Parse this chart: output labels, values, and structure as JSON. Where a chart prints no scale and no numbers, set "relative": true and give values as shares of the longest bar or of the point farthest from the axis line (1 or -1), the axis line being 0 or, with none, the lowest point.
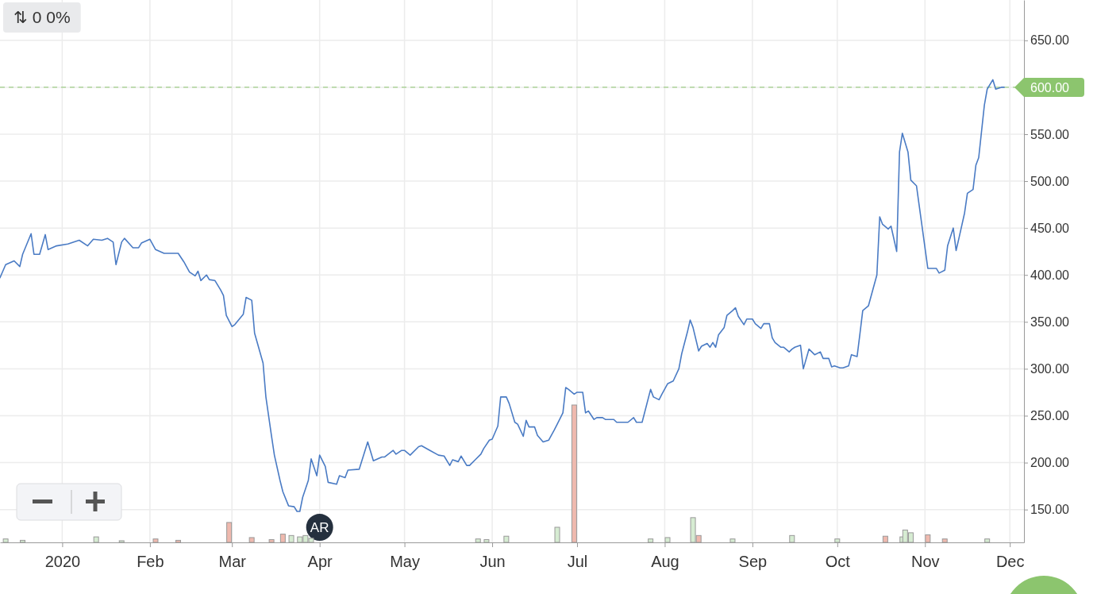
{
  "chart_data": [
    {
      "type": "line",
      "xlim": [
        "2019-12-10",
        "2020-12-06"
      ],
      "ylim": [
        115,
        693
      ],
      "xticks": [
        {
          "value": "2020-01-01",
          "label": "2020"
        },
        {
          "value": "2020-02-01",
          "label": "Feb"
        },
        {
          "value": "2020-03-01",
          "label": "Mar"
        },
        {
          "value": "2020-04-01",
          "label": "Apr"
        },
        {
          "value": "2020-05-01",
          "label": "May"
        },
        {
          "value": "2020-06-01",
          "label": "Jun"
        },
        {
          "value": "2020-07-01",
          "label": "Jul"
        },
        {
          "value": "2020-08-01",
          "label": "Aug"
        },
        {
          "value": "2020-09-01",
          "label": "Sep"
        },
        {
          "value": "2020-10-01",
          "label": "Oct"
        },
        {
          "value": "2020-11-01",
          "label": "Nov"
        },
        {
          "value": "2020-12-01",
          "label": "Dec"
        }
      ],
      "yticks": [
        {
          "value": 150,
          "label": "150.00"
        },
        {
          "value": 200,
          "label": "200.00"
        },
        {
          "value": 250,
          "label": "250.00"
        },
        {
          "value": 300,
          "label": "300.00"
        },
        {
          "value": 350,
          "label": "350.00"
        },
        {
          "value": 400,
          "label": "400.00"
        },
        {
          "value": 450,
          "label": "450.00"
        },
        {
          "value": 500,
          "label": "500.00"
        },
        {
          "value": 550,
          "label": "550.00"
        },
        {
          "value": 600,
          "label": null
        },
        {
          "value": 650,
          "label": "650.00"
        }
      ],
      "grid": true,
      "marker": "none",
      "line_style": "solid",
      "x": [
        "2019-12-10",
        "2019-12-12",
        "2019-12-15",
        "2019-12-17",
        "2019-12-18",
        "2019-12-21",
        "2019-12-22",
        "2019-12-24",
        "2019-12-26",
        "2019-12-27",
        "2019-12-30",
        "2020-01-03",
        "2020-01-07",
        "2020-01-10",
        "2020-01-12",
        "2020-01-15",
        "2020-01-17",
        "2020-01-19",
        "2020-01-20",
        "2020-01-22",
        "2020-01-23",
        "2020-01-26",
        "2020-01-28",
        "2020-01-29",
        "2020-02-01",
        "2020-02-03",
        "2020-02-06",
        "2020-02-11",
        "2020-02-13",
        "2020-02-15",
        "2020-02-17",
        "2020-02-18",
        "2020-02-19",
        "2020-02-21",
        "2020-02-22",
        "2020-02-24",
        "2020-02-26",
        "2020-02-27",
        "2020-02-28",
        "2020-03-01",
        "2020-03-02",
        "2020-03-05",
        "2020-03-06",
        "2020-03-08",
        "2020-03-09",
        "2020-03-12",
        "2020-03-13",
        "2020-03-15",
        "2020-03-16",
        "2020-03-18",
        "2020-03-19",
        "2020-03-21",
        "2020-03-23",
        "2020-03-24",
        "2020-03-25",
        "2020-03-26",
        "2020-03-28",
        "2020-03-29",
        "2020-03-31",
        "2020-04-01",
        "2020-04-03",
        "2020-04-04",
        "2020-04-07",
        "2020-04-08",
        "2020-04-10",
        "2020-04-11",
        "2020-04-15",
        "2020-04-18",
        "2020-04-20",
        "2020-04-23",
        "2020-04-24",
        "2020-04-27",
        "2020-04-28",
        "2020-04-30",
        "2020-05-01",
        "2020-05-03",
        "2020-05-06",
        "2020-05-07",
        "2020-05-10",
        "2020-05-13",
        "2020-05-15",
        "2020-05-17",
        "2020-05-18",
        "2020-05-20",
        "2020-05-21",
        "2020-05-23",
        "2020-05-24",
        "2020-05-26",
        "2020-05-28",
        "2020-05-29",
        "2020-05-31",
        "2020-06-01",
        "2020-06-03",
        "2020-06-04",
        "2020-06-06",
        "2020-06-07",
        "2020-06-09",
        "2020-06-10",
        "2020-06-12",
        "2020-06-13",
        "2020-06-14",
        "2020-06-16",
        "2020-06-17",
        "2020-06-19",
        "2020-06-21",
        "2020-06-23",
        "2020-06-24",
        "2020-06-26",
        "2020-06-27",
        "2020-06-28",
        "2020-06-30",
        "2020-07-01",
        "2020-07-03",
        "2020-07-04",
        "2020-07-05",
        "2020-07-07",
        "2020-07-08",
        "2020-07-10",
        "2020-07-11",
        "2020-07-14",
        "2020-07-15",
        "2020-07-19",
        "2020-07-21",
        "2020-07-22",
        "2020-07-24",
        "2020-07-27",
        "2020-07-28",
        "2020-07-30",
        "2020-07-31",
        "2020-08-02",
        "2020-08-04",
        "2020-08-06",
        "2020-08-07",
        "2020-08-09",
        "2020-08-10",
        "2020-08-11",
        "2020-08-13",
        "2020-08-14",
        "2020-08-16",
        "2020-08-17",
        "2020-08-18",
        "2020-08-19",
        "2020-08-20",
        "2020-08-22",
        "2020-08-23",
        "2020-08-25",
        "2020-08-26",
        "2020-08-27",
        "2020-08-29",
        "2020-08-30",
        "2020-09-01",
        "2020-09-02",
        "2020-09-04",
        "2020-09-05",
        "2020-09-07",
        "2020-09-08",
        "2020-09-09",
        "2020-09-11",
        "2020-09-12",
        "2020-09-14",
        "2020-09-15",
        "2020-09-16",
        "2020-09-18",
        "2020-09-19",
        "2020-09-21",
        "2020-09-22",
        "2020-09-23",
        "2020-09-25",
        "2020-09-26",
        "2020-09-28",
        "2020-09-29",
        "2020-09-30",
        "2020-10-02",
        "2020-10-03",
        "2020-10-05",
        "2020-10-06",
        "2020-10-08",
        "2020-10-09",
        "2020-10-10",
        "2020-10-12",
        "2020-10-13",
        "2020-10-15",
        "2020-10-16",
        "2020-10-17",
        "2020-10-19",
        "2020-10-20",
        "2020-10-22",
        "2020-10-23",
        "2020-10-24",
        "2020-10-26",
        "2020-10-27",
        "2020-10-29",
        "2020-10-30",
        "2020-11-02",
        "2020-11-05",
        "2020-11-06",
        "2020-11-08",
        "2020-11-09",
        "2020-11-11",
        "2020-11-12",
        "2020-11-13",
        "2020-11-15",
        "2020-11-16",
        "2020-11-18",
        "2020-11-19",
        "2020-11-20",
        "2020-11-22",
        "2020-11-23",
        "2020-11-25",
        "2020-11-26",
        "2020-11-28",
        "2020-11-29"
      ],
      "series": [
        {
          "color": "#4a7bc4",
          "values": [
            397,
            411,
            415,
            409,
            422,
            444,
            422,
            422,
            443,
            427,
            431,
            433,
            437,
            431,
            438,
            437,
            439,
            435,
            411,
            435,
            439,
            429,
            429,
            434,
            438,
            427,
            423,
            423,
            414,
            403,
            399,
            404,
            394,
            400,
            395,
            394,
            384,
            378,
            357,
            345,
            347,
            358,
            376,
            373,
            338,
            306,
            270,
            228,
            208,
            181,
            169,
            154,
            153,
            148,
            148,
            163,
            181,
            204,
            186,
            208,
            196,
            179,
            177,
            186,
            184,
            192,
            193,
            222,
            202,
            206,
            206,
            213,
            209,
            213,
            213,
            208,
            217,
            218,
            213,
            208,
            207,
            197,
            203,
            201,
            207,
            197,
            197,
            203,
            209,
            215,
            224,
            225,
            239,
            270,
            270,
            263,
            243,
            241,
            228,
            245,
            238,
            238,
            229,
            222,
            224,
            235,
            241,
            253,
            280,
            278,
            273,
            275,
            275,
            253,
            255,
            246,
            248,
            248,
            246,
            246,
            243,
            243,
            248,
            243,
            243,
            278,
            270,
            267,
            273,
            284,
            287,
            300,
            316,
            339,
            352,
            344,
            319,
            324,
            327,
            323,
            328,
            323,
            336,
            344,
            357,
            362,
            365,
            356,
            347,
            353,
            353,
            348,
            343,
            348,
            348,
            333,
            328,
            323,
            323,
            318,
            321,
            323,
            325,
            300,
            321,
            318,
            315,
            318,
            311,
            311,
            302,
            303,
            301,
            301,
            303,
            315,
            313,
            337,
            362,
            367,
            378,
            400,
            462,
            454,
            449,
            452,
            425,
            531,
            551,
            531,
            501,
            495,
            473,
            407,
            407,
            402,
            405,
            431,
            450,
            426,
            439,
            466,
            487,
            491,
            517,
            525,
            581,
            598,
            608,
            598,
            600,
            600
          ]
        }
      ],
      "ref_lines": [
        {
          "axis": "y",
          "value": 600,
          "label": "600.00",
          "color": "#8cc56e",
          "line_style": "dashed"
        }
      ],
      "annotations": [
        "⇅ 0 0%",
        {
          "text": "AR",
          "x": "2020-04-01",
          "y": 131
        }
      ]
    },
    {
      "type": "bar",
      "relative": true,
      "tick_labels": false,
      "xlim": [
        "2019-12-10",
        "2020-12-06"
      ],
      "x": [
        "2019-12-12",
        "2019-12-18",
        "2020-01-13",
        "2020-01-22",
        "2020-02-03",
        "2020-02-11",
        "2020-02-29",
        "2020-03-08",
        "2020-03-15",
        "2020-03-19",
        "2020-03-22",
        "2020-03-25",
        "2020-03-27",
        "2020-03-29",
        "2020-05-27",
        "2020-05-30",
        "2020-06-06",
        "2020-06-24",
        "2020-06-30",
        "2020-07-27",
        "2020-08-02",
        "2020-08-11",
        "2020-08-13",
        "2020-08-25",
        "2020-09-15",
        "2020-10-01",
        "2020-10-18",
        "2020-10-24",
        "2020-10-25",
        "2020-10-27",
        "2020-11-02",
        "2020-11-08",
        "2020-11-23"
      ],
      "values": [
        0.025,
        0.015,
        0.04,
        0.012,
        0.025,
        0.015,
        0.145,
        0.035,
        0.02,
        0.06,
        0.05,
        0.04,
        0.05,
        0.03,
        0.025,
        0.02,
        0.045,
        0.11,
        1,
        0.025,
        0.035,
        0.18,
        0.05,
        0.025,
        0.05,
        0.025,
        0.045,
        0.04,
        0.09,
        0.07,
        0.055,
        0.025,
        0.025
      ],
      "colors": [
        "#d6ecd2",
        "#d6ecd2",
        "#d6ecd2",
        "#d6ecd2",
        "#efb9ae",
        "#efb9ae",
        "#efb9ae",
        "#efb9ae",
        "#efb9ae",
        "#efb9ae",
        "#d6ecd2",
        "#d6ecd2",
        "#d6ecd2",
        "#d6ecd2",
        "#d6ecd2",
        "#d6ecd2",
        "#d6ecd2",
        "#d6ecd2",
        "#efb9ae",
        "#d6ecd2",
        "#d6ecd2",
        "#d6ecd2",
        "#efb9ae",
        "#d6ecd2",
        "#d6ecd2",
        "#d6ecd2",
        "#efb9ae",
        "#d6ecd2",
        "#d6ecd2",
        "#d6ecd2",
        "#efb9ae",
        "#efb9ae",
        "#d6ecd2"
      ]
    }
  ]
}
